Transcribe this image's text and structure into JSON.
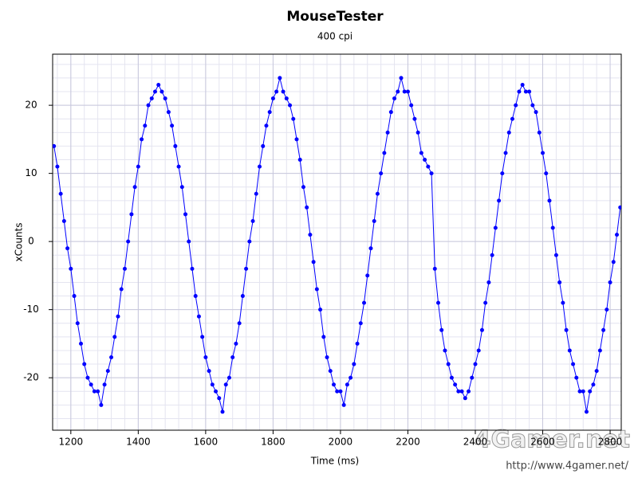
{
  "chart_data": {
    "type": "scatter",
    "title": "MouseTester",
    "subtitle": "400 cpi",
    "x_label": "Time (ms)",
    "y_label": "xCounts",
    "x": [
      1150,
      1160,
      1170,
      1180,
      1190,
      1200,
      1210,
      1220,
      1230,
      1240,
      1250,
      1260,
      1270,
      1280,
      1290,
      1300,
      1310,
      1320,
      1330,
      1340,
      1350,
      1360,
      1370,
      1380,
      1390,
      1400,
      1410,
      1420,
      1430,
      1440,
      1450,
      1460,
      1470,
      1480,
      1490,
      1500,
      1510,
      1520,
      1530,
      1540,
      1550,
      1560,
      1570,
      1580,
      1590,
      1600,
      1610,
      1620,
      1630,
      1640,
      1650,
      1660,
      1670,
      1680,
      1690,
      1700,
      1710,
      1720,
      1730,
      1740,
      1750,
      1760,
      1770,
      1780,
      1790,
      1800,
      1810,
      1820,
      1830,
      1840,
      1850,
      1860,
      1870,
      1880,
      1890,
      1900,
      1910,
      1920,
      1930,
      1940,
      1950,
      1960,
      1970,
      1980,
      1990,
      2000,
      2010,
      2020,
      2030,
      2040,
      2050,
      2060,
      2070,
      2080,
      2090,
      2100,
      2110,
      2120,
      2130,
      2140,
      2150,
      2160,
      2170,
      2180,
      2190,
      2200,
      2210,
      2220,
      2230,
      2240,
      2250,
      2260,
      2270,
      2280,
      2290,
      2300,
      2310,
      2320,
      2330,
      2340,
      2350,
      2360,
      2370,
      2380,
      2390,
      2400,
      2410,
      2420,
      2430,
      2440,
      2450,
      2460,
      2470,
      2480,
      2490,
      2500,
      2510,
      2520,
      2530,
      2540,
      2550,
      2560,
      2570,
      2580,
      2590,
      2600,
      2610,
      2620,
      2630,
      2640,
      2650,
      2660,
      2670,
      2680,
      2690,
      2700,
      2710,
      2720,
      2730,
      2740,
      2750,
      2760,
      2770,
      2780,
      2790,
      2800,
      2810,
      2820,
      2830
    ],
    "values": [
      14,
      11,
      7,
      3,
      -1,
      -4,
      -8,
      -12,
      -15,
      -18,
      -20,
      -21,
      -22,
      -22,
      -24,
      -21,
      -19,
      -17,
      -14,
      -11,
      -7,
      -4,
      0,
      4,
      8,
      11,
      15,
      17,
      20,
      21,
      22,
      23,
      22,
      21,
      19,
      17,
      14,
      11,
      8,
      4,
      0,
      -4,
      -8,
      -11,
      -14,
      -17,
      -19,
      -21,
      -22,
      -23,
      -25,
      -21,
      -20,
      -17,
      -15,
      -12,
      -8,
      -4,
      0,
      3,
      7,
      11,
      14,
      17,
      19,
      21,
      22,
      24,
      22,
      21,
      20,
      18,
      15,
      12,
      8,
      5,
      1,
      -3,
      -7,
      -10,
      -14,
      -17,
      -19,
      -21,
      -22,
      -22,
      -24,
      -21,
      -20,
      -18,
      -15,
      -12,
      -9,
      -5,
      -1,
      3,
      7,
      10,
      13,
      16,
      19,
      21,
      22,
      24,
      22,
      22,
      20,
      18,
      16,
      13,
      12,
      11,
      10,
      -4,
      -9,
      -13,
      -16,
      -18,
      -20,
      -21,
      -22,
      -22,
      -23,
      -22,
      -20,
      -18,
      -16,
      -13,
      -9,
      -6,
      -2,
      2,
      6,
      10,
      13,
      16,
      18,
      20,
      22,
      23,
      22,
      22,
      20,
      19,
      16,
      13,
      10,
      6,
      2,
      -2,
      -6,
      -9,
      -13,
      -16,
      -18,
      -20,
      -22,
      -22,
      -25,
      -22,
      -21,
      -19,
      -16,
      -13,
      -10,
      -6,
      -3,
      1,
      5
    ],
    "color": "#0000ff",
    "line": true,
    "xlim": [
      1146,
      2833
    ],
    "ylim": [
      -27.7,
      27.5
    ],
    "xticks": [
      1200,
      1400,
      1600,
      1800,
      2000,
      2200,
      2400,
      2600,
      2800
    ],
    "yticks": [
      -20,
      -10,
      0,
      10,
      20
    ],
    "grid": true,
    "watermark": {
      "logo": "4Gamer.net",
      "url": "http://www.4gamer.net/"
    }
  }
}
